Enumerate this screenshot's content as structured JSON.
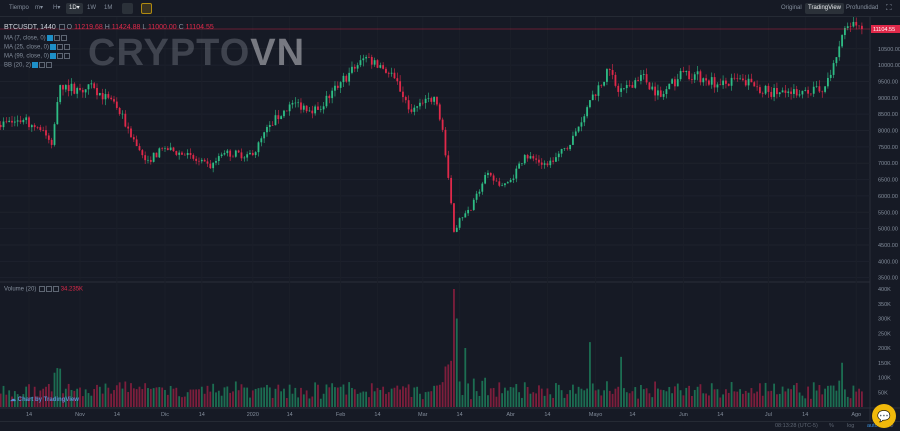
{
  "toolbar": {
    "items": [
      {
        "label": "Tiempo"
      },
      {
        "label": "m▾"
      },
      {
        "label": "H▾"
      },
      {
        "label": "1D▾",
        "active": true
      },
      {
        "label": "1W"
      },
      {
        "label": "1M"
      }
    ],
    "views": [
      {
        "label": "Original"
      },
      {
        "label": "TradingView",
        "active": true
      },
      {
        "label": "Profundidad"
      }
    ]
  },
  "legend": {
    "symbol": "BTCUSDT, 1440",
    "o_label": "O",
    "o": "11219.68",
    "h_label": "H",
    "h": "11424.88",
    "l_label": "L",
    "l": "11000.00",
    "c_label": "C",
    "c": "11104.55",
    "indicators": [
      "MA (7, close, 0)",
      "MA (25, close, 0)",
      "MA (99, close, 0)",
      "BB (20, 2)"
    ]
  },
  "watermark": {
    "text1": "CRYPTO",
    "text2": "VN"
  },
  "volume": {
    "label": "Volume (20)",
    "value": "34.235K"
  },
  "colors": {
    "up": "#2ebd85",
    "down": "#e0294a",
    "vol_up": "#1c6e52",
    "vol_down": "#7d1e3c",
    "last_price": "#e0294a",
    "accent": "#f0b90b"
  },
  "chart_data": {
    "type": "candlestick",
    "symbol": "BTCUSDT",
    "interval": "1D",
    "last_price": "11104.55",
    "price_ticks": [
      "10500.00",
      "10000.00",
      "9500.00",
      "9000.00",
      "8500.00",
      "8000.00",
      "7500.00",
      "7000.00",
      "6500.00",
      "6000.00",
      "5500.00",
      "5000.00",
      "4500.00",
      "4000.00",
      "3500.00"
    ],
    "volume_ticks": [
      "400K",
      "350K",
      "300K",
      "250K",
      "200K",
      "150K",
      "100K",
      "50K"
    ],
    "time_ticks": [
      "14",
      "Nov",
      "14",
      "Dic",
      "14",
      "2020",
      "14",
      "Feb",
      "14",
      "Mar",
      "14",
      "Abr",
      "14",
      "Mayo",
      "14",
      "Jun",
      "14",
      "Jul",
      "14",
      "Ago"
    ],
    "close_anchors": [
      [
        "2019-10-03",
        8170
      ],
      [
        "2019-10-12",
        8320
      ],
      [
        "2019-10-19",
        8010
      ],
      [
        "2019-10-22",
        7560
      ],
      [
        "2019-10-25",
        9390
      ],
      [
        "2019-11-01",
        9240
      ],
      [
        "2019-11-06",
        9300
      ],
      [
        "2019-11-14",
        8690
      ],
      [
        "2019-11-22",
        7400
      ],
      [
        "2019-11-25",
        7100
      ],
      [
        "2019-12-01",
        7460
      ],
      [
        "2019-12-08",
        7250
      ],
      [
        "2019-12-17",
        6850
      ],
      [
        "2019-12-22",
        7310
      ],
      [
        "2020-01-01",
        7250
      ],
      [
        "2020-01-07",
        8170
      ],
      [
        "2020-01-15",
        8840
      ],
      [
        "2020-01-24",
        8630
      ],
      [
        "2020-02-01",
        9480
      ],
      [
        "2020-02-10",
        10250
      ],
      [
        "2020-02-15",
        10000
      ],
      [
        "2020-02-20",
        9600
      ],
      [
        "2020-02-26",
        8570
      ],
      [
        "2020-03-05",
        9030
      ],
      [
        "2020-03-08",
        8020
      ],
      [
        "2020-03-12",
        4900
      ],
      [
        "2020-03-14",
        5320
      ],
      [
        "2020-03-18",
        5570
      ],
      [
        "2020-03-23",
        6640
      ],
      [
        "2020-03-29",
        6330
      ],
      [
        "2020-04-01",
        6490
      ],
      [
        "2020-04-06",
        7250
      ],
      [
        "2020-04-14",
        6940
      ],
      [
        "2020-04-22",
        7560
      ],
      [
        "2020-04-29",
        8930
      ],
      [
        "2020-05-06",
        9850
      ],
      [
        "2020-05-09",
        9180
      ],
      [
        "2020-05-13",
        9390
      ],
      [
        "2020-05-17",
        9700
      ],
      [
        "2020-05-24",
        9030
      ],
      [
        "2020-06-01",
        9790
      ],
      [
        "2020-06-08",
        9600
      ],
      [
        "2020-06-14",
        9390
      ],
      [
        "2020-06-22",
        9540
      ],
      [
        "2020-07-01",
        9180
      ],
      [
        "2020-07-07",
        9150
      ],
      [
        "2020-07-14",
        9240
      ],
      [
        "2020-07-20",
        9180
      ],
      [
        "2020-07-23",
        9700
      ],
      [
        "2020-07-27",
        10920
      ],
      [
        "2020-07-31",
        11320
      ],
      [
        "2020-08-03",
        11104.55
      ]
    ],
    "volume_peaks_k": [
      [
        "2019-10-25",
        130
      ],
      [
        "2020-03-12",
        400
      ],
      [
        "2020-03-13",
        300
      ],
      [
        "2020-03-16",
        200
      ],
      [
        "2020-04-29",
        220
      ],
      [
        "2020-05-10",
        170
      ],
      [
        "2020-07-27",
        150
      ]
    ]
  },
  "watermark_logo": "Chart by TradingView",
  "bottom": {
    "time": "08:13:28 (UTC-5)",
    "percent": "%",
    "log": "log",
    "auto": "auto"
  }
}
